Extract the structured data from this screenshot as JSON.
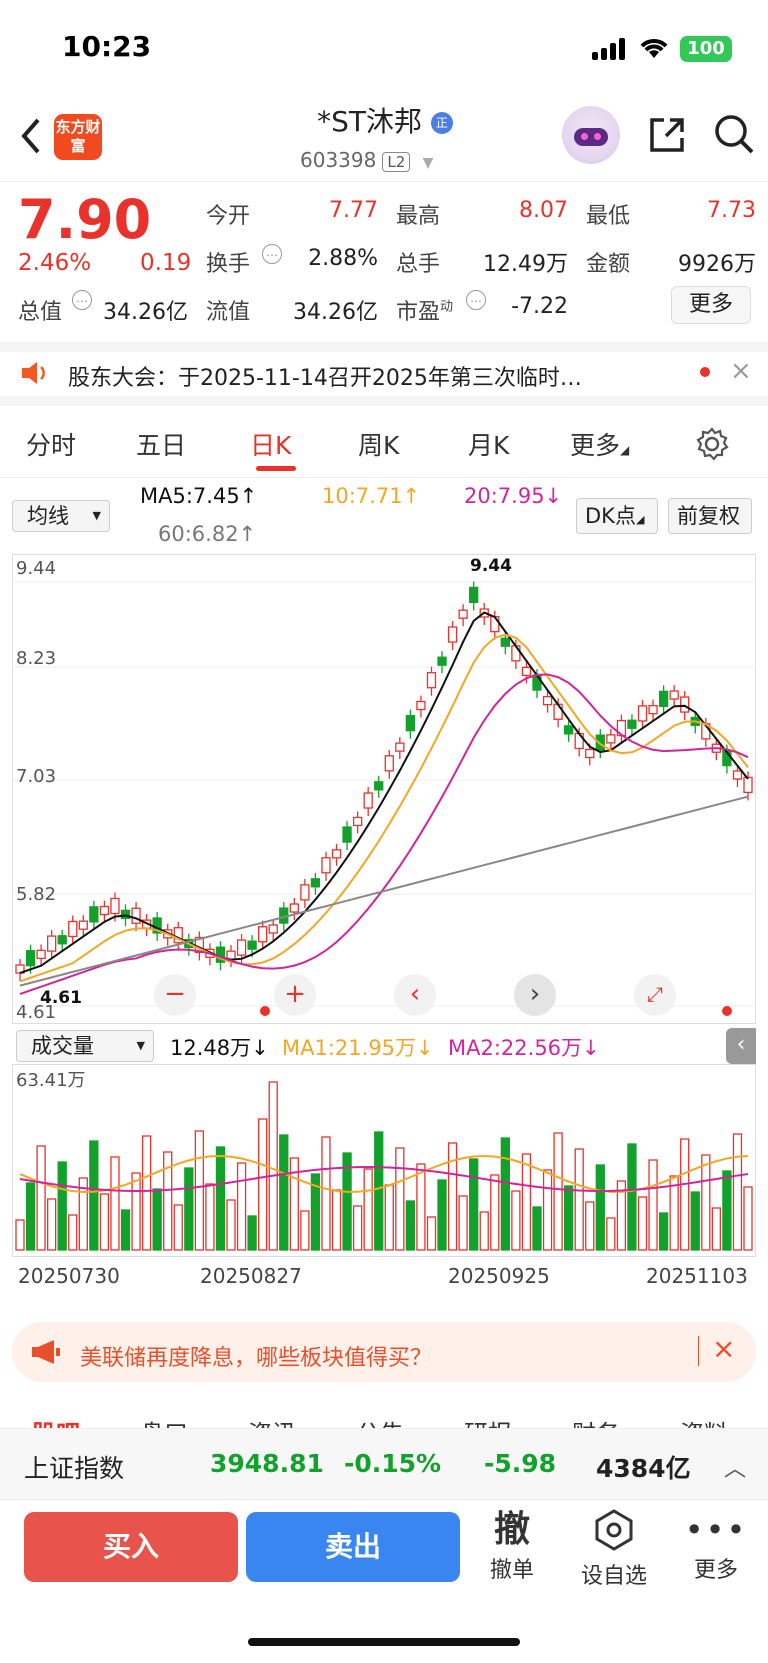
{
  "status": {
    "time": "10:23",
    "battery": "100"
  },
  "header": {
    "logo_text": "东方财富",
    "title": "*ST沐邦",
    "code": "603398",
    "level": "L2"
  },
  "quote": {
    "price": "7.90",
    "change_pct": "2.46%",
    "change": "0.19",
    "open_label": "今开",
    "open": "7.77",
    "high_label": "最高",
    "high": "8.07",
    "low_label": "最低",
    "low": "7.73",
    "turnover_label": "换手",
    "turnover": "2.88%",
    "volume_label": "总手",
    "volume": "12.49万",
    "amount_label": "金额",
    "amount": "9926万",
    "mktcap_label": "总值",
    "mktcap": "34.26亿",
    "float_label": "流值",
    "float": "34.26亿",
    "pe_label": "市盈",
    "pe_sup": "动",
    "pe": "-7.22",
    "more": "更多"
  },
  "notice": {
    "text": "股东大会：于2025-11-14召开2025年第三次临时…"
  },
  "tabs": [
    "分时",
    "五日",
    "日K",
    "周K",
    "月K",
    "更多"
  ],
  "indicators": {
    "ma_select": "均线",
    "ma5": "MA5:7.45↑",
    "ma10": "10:7.71↑",
    "ma20": "20:7.95↓",
    "ma60": "60:6.82↑",
    "dk": "DK点",
    "adjust": "前复权"
  },
  "kline": {
    "y_labels": [
      "9.44",
      "8.23",
      "7.03",
      "5.82",
      "4.61"
    ],
    "max_label": "9.44",
    "min_label": "4.61"
  },
  "volume": {
    "select": "成交量",
    "value": "12.48万↓",
    "ma1": "MA1:21.95万↓",
    "ma2": "MA2:22.56万↓",
    "max_label": "63.41万",
    "dates": [
      "20250730",
      "20250827",
      "20250925",
      "20251103"
    ]
  },
  "banner": {
    "text": "美联储再度降息，哪些板块值得买？"
  },
  "subtabs": [
    "股吧",
    "盘口",
    "资讯",
    "公告",
    "研报",
    "财务",
    "资料"
  ],
  "index": {
    "name": "上证指数",
    "value": "3948.81",
    "pct": "-0.15%",
    "change": "-5.98",
    "amount": "4384亿"
  },
  "bottom": {
    "buy": "买入",
    "sell": "卖出",
    "cancel_icon": "撤",
    "cancel": "撤单",
    "watch": "设自选",
    "more": "更多"
  },
  "colors": {
    "up": "#e8322b",
    "down": "#12a12a",
    "ma5": "#111111",
    "ma10": "#f5a623",
    "ma20": "#d1259c",
    "ma60": "#888888"
  }
}
